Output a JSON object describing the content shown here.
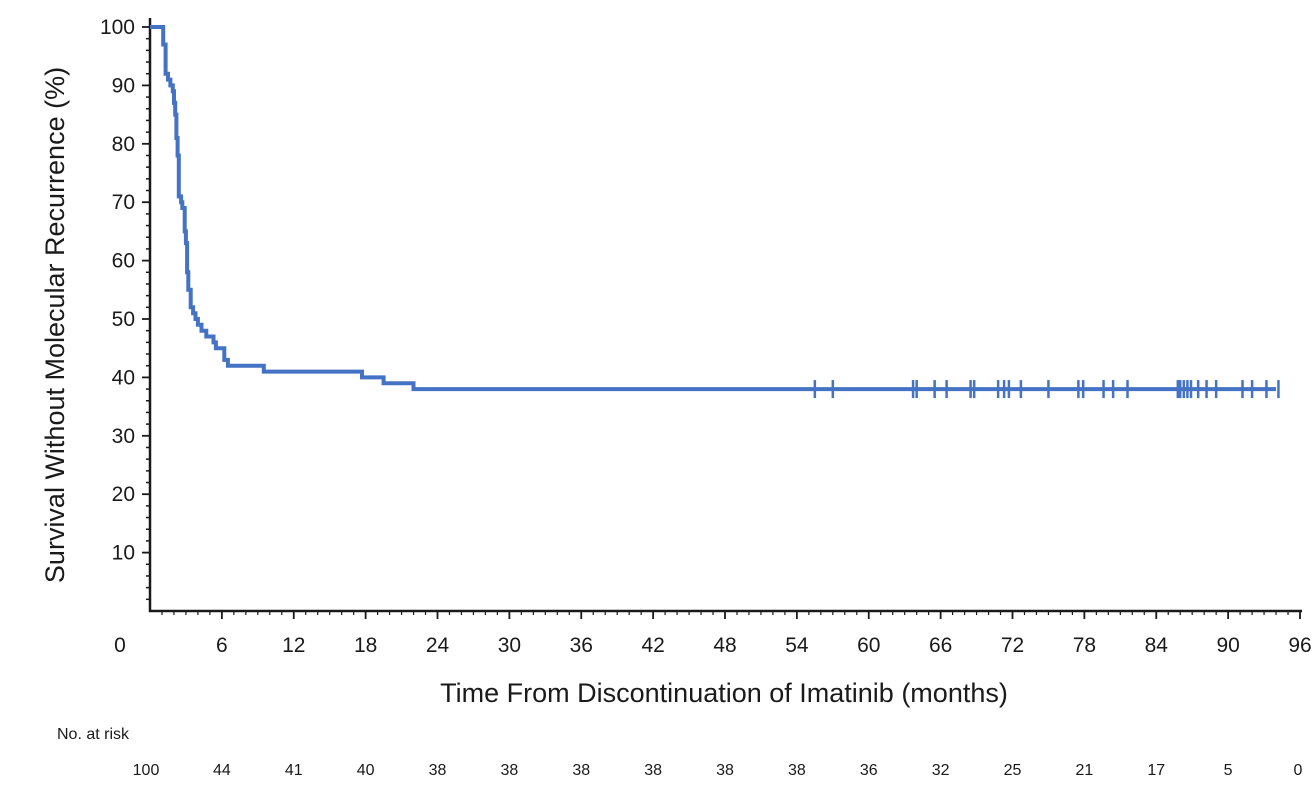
{
  "chart_data": {
    "type": "line",
    "title": "",
    "xlabel": "Time From Discontinuation of Imatinib (months)",
    "ylabel": "Survival Without Molecular Recurrence (%)",
    "xlim": [
      0,
      96
    ],
    "ylim": [
      0,
      100
    ],
    "x_ticks": [
      0,
      6,
      12,
      18,
      24,
      30,
      36,
      42,
      48,
      54,
      60,
      66,
      72,
      78,
      84,
      90,
      96
    ],
    "y_ticks": [
      10,
      20,
      30,
      40,
      50,
      60,
      70,
      80,
      90,
      100
    ],
    "grid": false,
    "series_color": "#4472C4",
    "series": [
      {
        "style": "step",
        "x": [
          0,
          1.0,
          1.1,
          1.3,
          1.5,
          1.7,
          1.9,
          2.0,
          2.1,
          2.2,
          2.3,
          2.4,
          2.6,
          2.7,
          2.9,
          3.0,
          3.1,
          3.2,
          3.4,
          3.6,
          3.8,
          4.0,
          4.3,
          4.5,
          4.7,
          5.3,
          5.5,
          6.2,
          6.5,
          9.5,
          17.7,
          19.5,
          22.0,
          94.0
        ],
        "y": [
          100,
          100,
          97,
          92,
          91,
          90,
          89,
          87,
          85,
          81,
          78,
          71,
          70,
          69,
          65,
          63,
          58,
          55,
          52,
          51,
          50,
          49,
          48,
          48,
          47,
          46,
          45,
          43,
          42,
          41,
          40,
          39,
          38,
          38
        ]
      }
    ],
    "censor_marks_x": [
      55.5,
      57.0,
      63.7,
      64.0,
      65.5,
      66.5,
      68.5,
      68.8,
      70.8,
      71.3,
      71.7,
      72.7,
      75.0,
      77.5,
      77.9,
      79.6,
      80.4,
      81.6,
      85.8,
      86.0,
      86.3,
      86.6,
      86.9,
      87.5,
      88.2,
      89.0,
      91.2,
      92.0,
      93.2,
      94.2
    ],
    "risk_table": {
      "label": "No. at risk",
      "times": [
        0,
        6,
        12,
        18,
        24,
        30,
        36,
        42,
        48,
        54,
        60,
        66,
        72,
        78,
        84,
        90,
        96
      ],
      "counts": [
        100,
        44,
        41,
        40,
        38,
        38,
        38,
        38,
        38,
        38,
        36,
        32,
        25,
        21,
        17,
        5,
        0
      ]
    }
  }
}
